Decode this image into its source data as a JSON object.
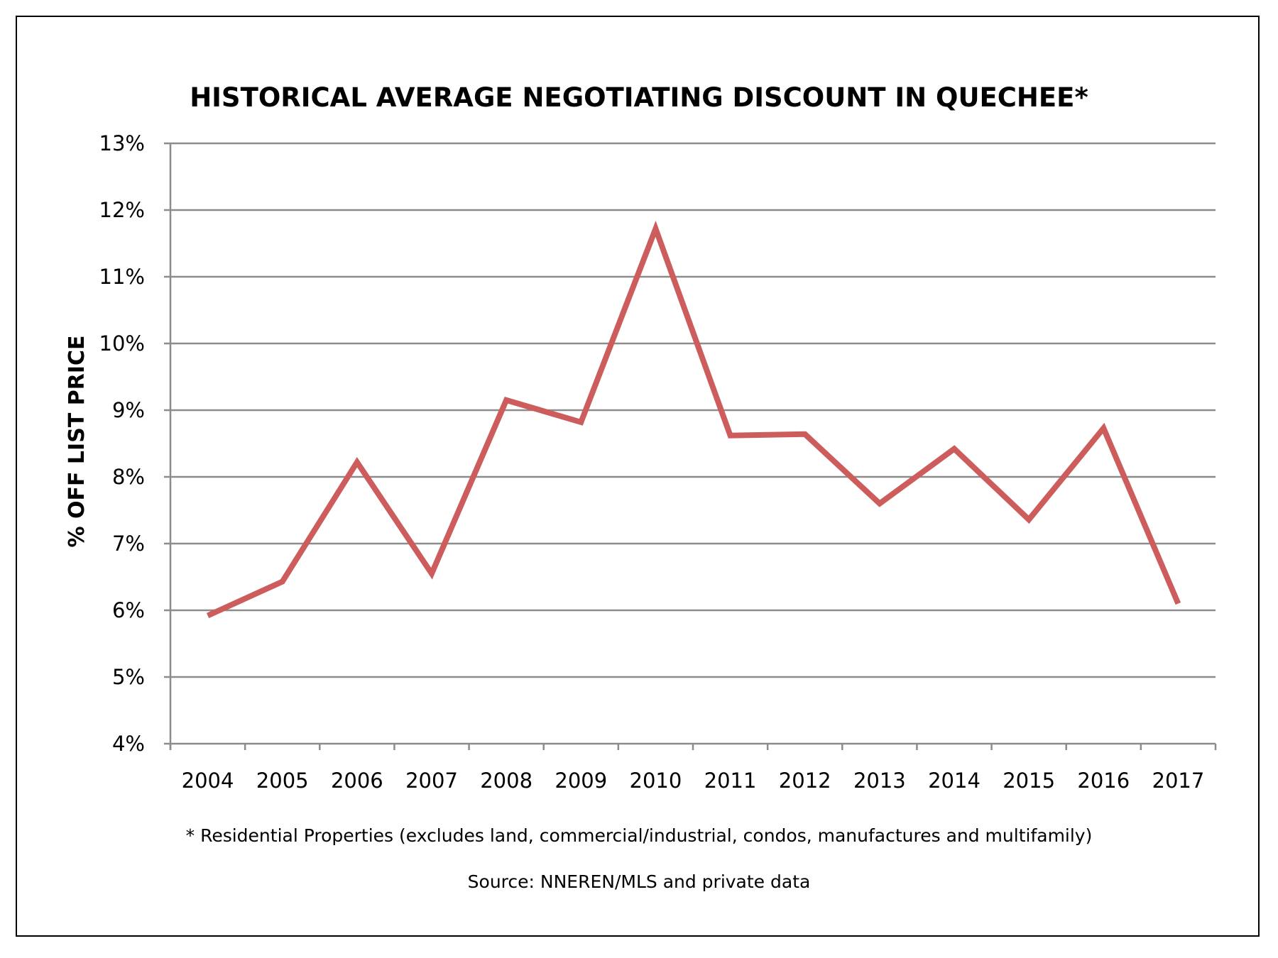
{
  "chart_data": {
    "type": "line",
    "title": "HISTORICAL AVERAGE NEGOTIATING DISCOUNT IN QUECHEE*",
    "ylabel": "% OFF LIST PRICE",
    "xlabel": "",
    "categories": [
      "2004",
      "2005",
      "2006",
      "2007",
      "2008",
      "2009",
      "2010",
      "2011",
      "2012",
      "2013",
      "2014",
      "2015",
      "2016",
      "2017"
    ],
    "series": [
      {
        "values": [
          5.92,
          6.43,
          8.22,
          6.55,
          9.15,
          8.82,
          11.72,
          8.62,
          8.64,
          7.6,
          8.42,
          7.36,
          8.73,
          6.1
        ]
      }
    ],
    "ylim": [
      4,
      13
    ],
    "yticks": [
      4,
      5,
      6,
      7,
      8,
      9,
      10,
      11,
      12,
      13
    ],
    "ytick_labels": [
      "4%",
      "5%",
      "6%",
      "7%",
      "8%",
      "9%",
      "10%",
      "11%",
      "12%",
      "13%"
    ],
    "grid": true,
    "line_color": "#cd5c5c",
    "footnote": "* Residential Properties (excludes land, commercial/industrial, condos, manufactures and multifamily)",
    "source": "Source: NNEREN/MLS and private data"
  }
}
